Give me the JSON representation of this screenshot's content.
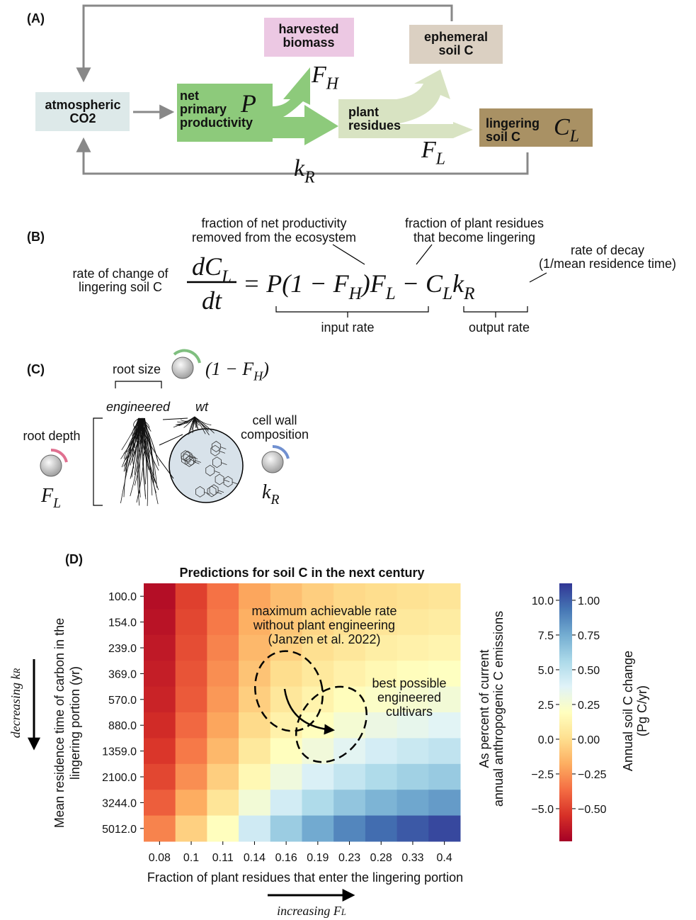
{
  "panel_a": {
    "label": "(A)",
    "atmospheric": [
      "atmospheric",
      "CO2"
    ],
    "npp": [
      "net",
      "primary",
      "productivity"
    ],
    "harvested": [
      "harvested",
      "biomass"
    ],
    "ephemeral": [
      "ephemeral",
      "soil C"
    ],
    "residues": [
      "plant",
      "residues"
    ],
    "lingering": [
      "lingering",
      "soil C"
    ],
    "symbols": {
      "P": [
        "P"
      ],
      "F_H": [
        "F",
        "H"
      ],
      "F_L": [
        "F",
        "L"
      ],
      "C_L": [
        "C",
        "L"
      ],
      "k_R": [
        "k",
        "R"
      ]
    }
  },
  "panel_b": {
    "label": "(B)",
    "lhs_label": [
      "rate of change of",
      "lingering soil C"
    ],
    "numerator": [
      "dC",
      "L"
    ],
    "denominator": [
      "dt"
    ],
    "rhs": [
      "= P(1 − F",
      "H",
      ")F",
      "L",
      " − C",
      "L",
      "k",
      "R"
    ],
    "removed_note": [
      "fraction of net productivity",
      "removed from the ecosystem"
    ],
    "lingering_note": [
      "fraction of plant residues",
      "that become lingering"
    ],
    "decay_note": [
      "rate of decay",
      "(1/mean residence time)"
    ],
    "input_rate": "input rate",
    "output_rate": "output rate"
  },
  "panel_c": {
    "label": "(C)",
    "root_size": "root size",
    "harvest_knob": [
      "(1 − F",
      "H",
      ")"
    ],
    "engineered": "engineered",
    "wt": "wt",
    "root_depth": "root depth",
    "depth_knob": [
      "F",
      "L"
    ],
    "cell_wall": [
      "cell wall",
      "composition"
    ],
    "wall_knob": [
      "k",
      "R"
    ]
  },
  "chart_data": {
    "type": "heatmap",
    "panel_label": "(D)",
    "title": "Predictions for soil C in the next century",
    "x_label": "Fraction of plant residues that enter the lingering portion",
    "y_label": [
      "Mean residence time of carbon in the",
      "lingering portion (yr)"
    ],
    "x_arrow_label": [
      "increasing F",
      "L"
    ],
    "y_arrow_label": [
      "decreasing k",
      "R"
    ],
    "categories": [
      "0.08",
      "0.1",
      "0.11",
      "0.14",
      "0.16",
      "0.19",
      "0.23",
      "0.28",
      "0.33",
      "0.4"
    ],
    "y_categories": [
      "100.0",
      "154.0",
      "239.0",
      "369.0",
      "570.0",
      "880.0",
      "1359.0",
      "2100.0",
      "3244.0",
      "5012.0"
    ],
    "values": [
      [
        -0.68,
        -0.5,
        -0.35,
        -0.2,
        -0.12,
        -0.06,
        -0.02,
        0.0,
        0.02,
        0.04
      ],
      [
        -0.66,
        -0.48,
        -0.33,
        -0.17,
        -0.09,
        -0.03,
        0.01,
        0.04,
        0.06,
        0.08
      ],
      [
        -0.64,
        -0.46,
        -0.3,
        -0.14,
        -0.05,
        0.01,
        0.05,
        0.09,
        0.11,
        0.13
      ],
      [
        -0.62,
        -0.44,
        -0.27,
        -0.1,
        0.0,
        0.06,
        0.11,
        0.15,
        0.18,
        0.2
      ],
      [
        -0.6,
        -0.42,
        -0.24,
        -0.06,
        0.05,
        0.12,
        0.18,
        0.22,
        0.25,
        0.27
      ],
      [
        -0.57,
        -0.38,
        -0.2,
        -0.01,
        0.11,
        0.19,
        0.26,
        0.31,
        0.34,
        0.37
      ],
      [
        -0.53,
        -0.33,
        -0.14,
        0.06,
        0.19,
        0.28,
        0.36,
        0.42,
        0.46,
        0.49
      ],
      [
        -0.48,
        -0.27,
        -0.06,
        0.15,
        0.29,
        0.4,
        0.48,
        0.55,
        0.6,
        0.63
      ],
      [
        -0.41,
        -0.18,
        0.04,
        0.27,
        0.43,
        0.55,
        0.65,
        0.72,
        0.77,
        0.81
      ],
      [
        -0.3,
        -0.05,
        0.19,
        0.44,
        0.62,
        0.76,
        0.88,
        0.96,
        1.02,
        1.07
      ]
    ],
    "colormap": [
      "#a50026",
      "#d73027",
      "#f46d43",
      "#fdae61",
      "#fee090",
      "#ffffbf",
      "#e0f3f8",
      "#abd9e9",
      "#74add1",
      "#4575b4",
      "#313695"
    ],
    "ylim": [
      -0.735,
      1.122
    ],
    "yticks": [
      {
        "value": -0.5,
        "label": "−0.50"
      },
      {
        "value": -0.25,
        "label": "−0.25"
      },
      {
        "value": 0,
        "label": "0.00"
      },
      0.25,
      {
        "value": 0.5,
        "label": "0.50"
      },
      0.75,
      {
        "value": 1,
        "label": "1.00"
      }
    ],
    "y_label_right": [
      "Annual soil C change",
      "(Pg C/yr)"
    ],
    "y2lim": [
      -7.35,
      11.22
    ],
    "y2ticks": [
      {
        "value": -5,
        "label": "−5.0"
      },
      {
        "value": -2.5,
        "label": "−2.5"
      },
      {
        "value": 0,
        "label": "0.0"
      },
      2.5,
      {
        "value": 5,
        "label": "5.0"
      },
      7.5,
      {
        "value": 10,
        "label": "10.0"
      }
    ],
    "y2_label": [
      "As percent of current",
      "annual anthropogenic C emissions"
    ],
    "annotations": [
      [
        "maximum achievable rate",
        "without plant engineering",
        "(Janzen et al. 2022)"
      ],
      [
        "best possible",
        "engineered",
        "cultivars"
      ]
    ]
  }
}
